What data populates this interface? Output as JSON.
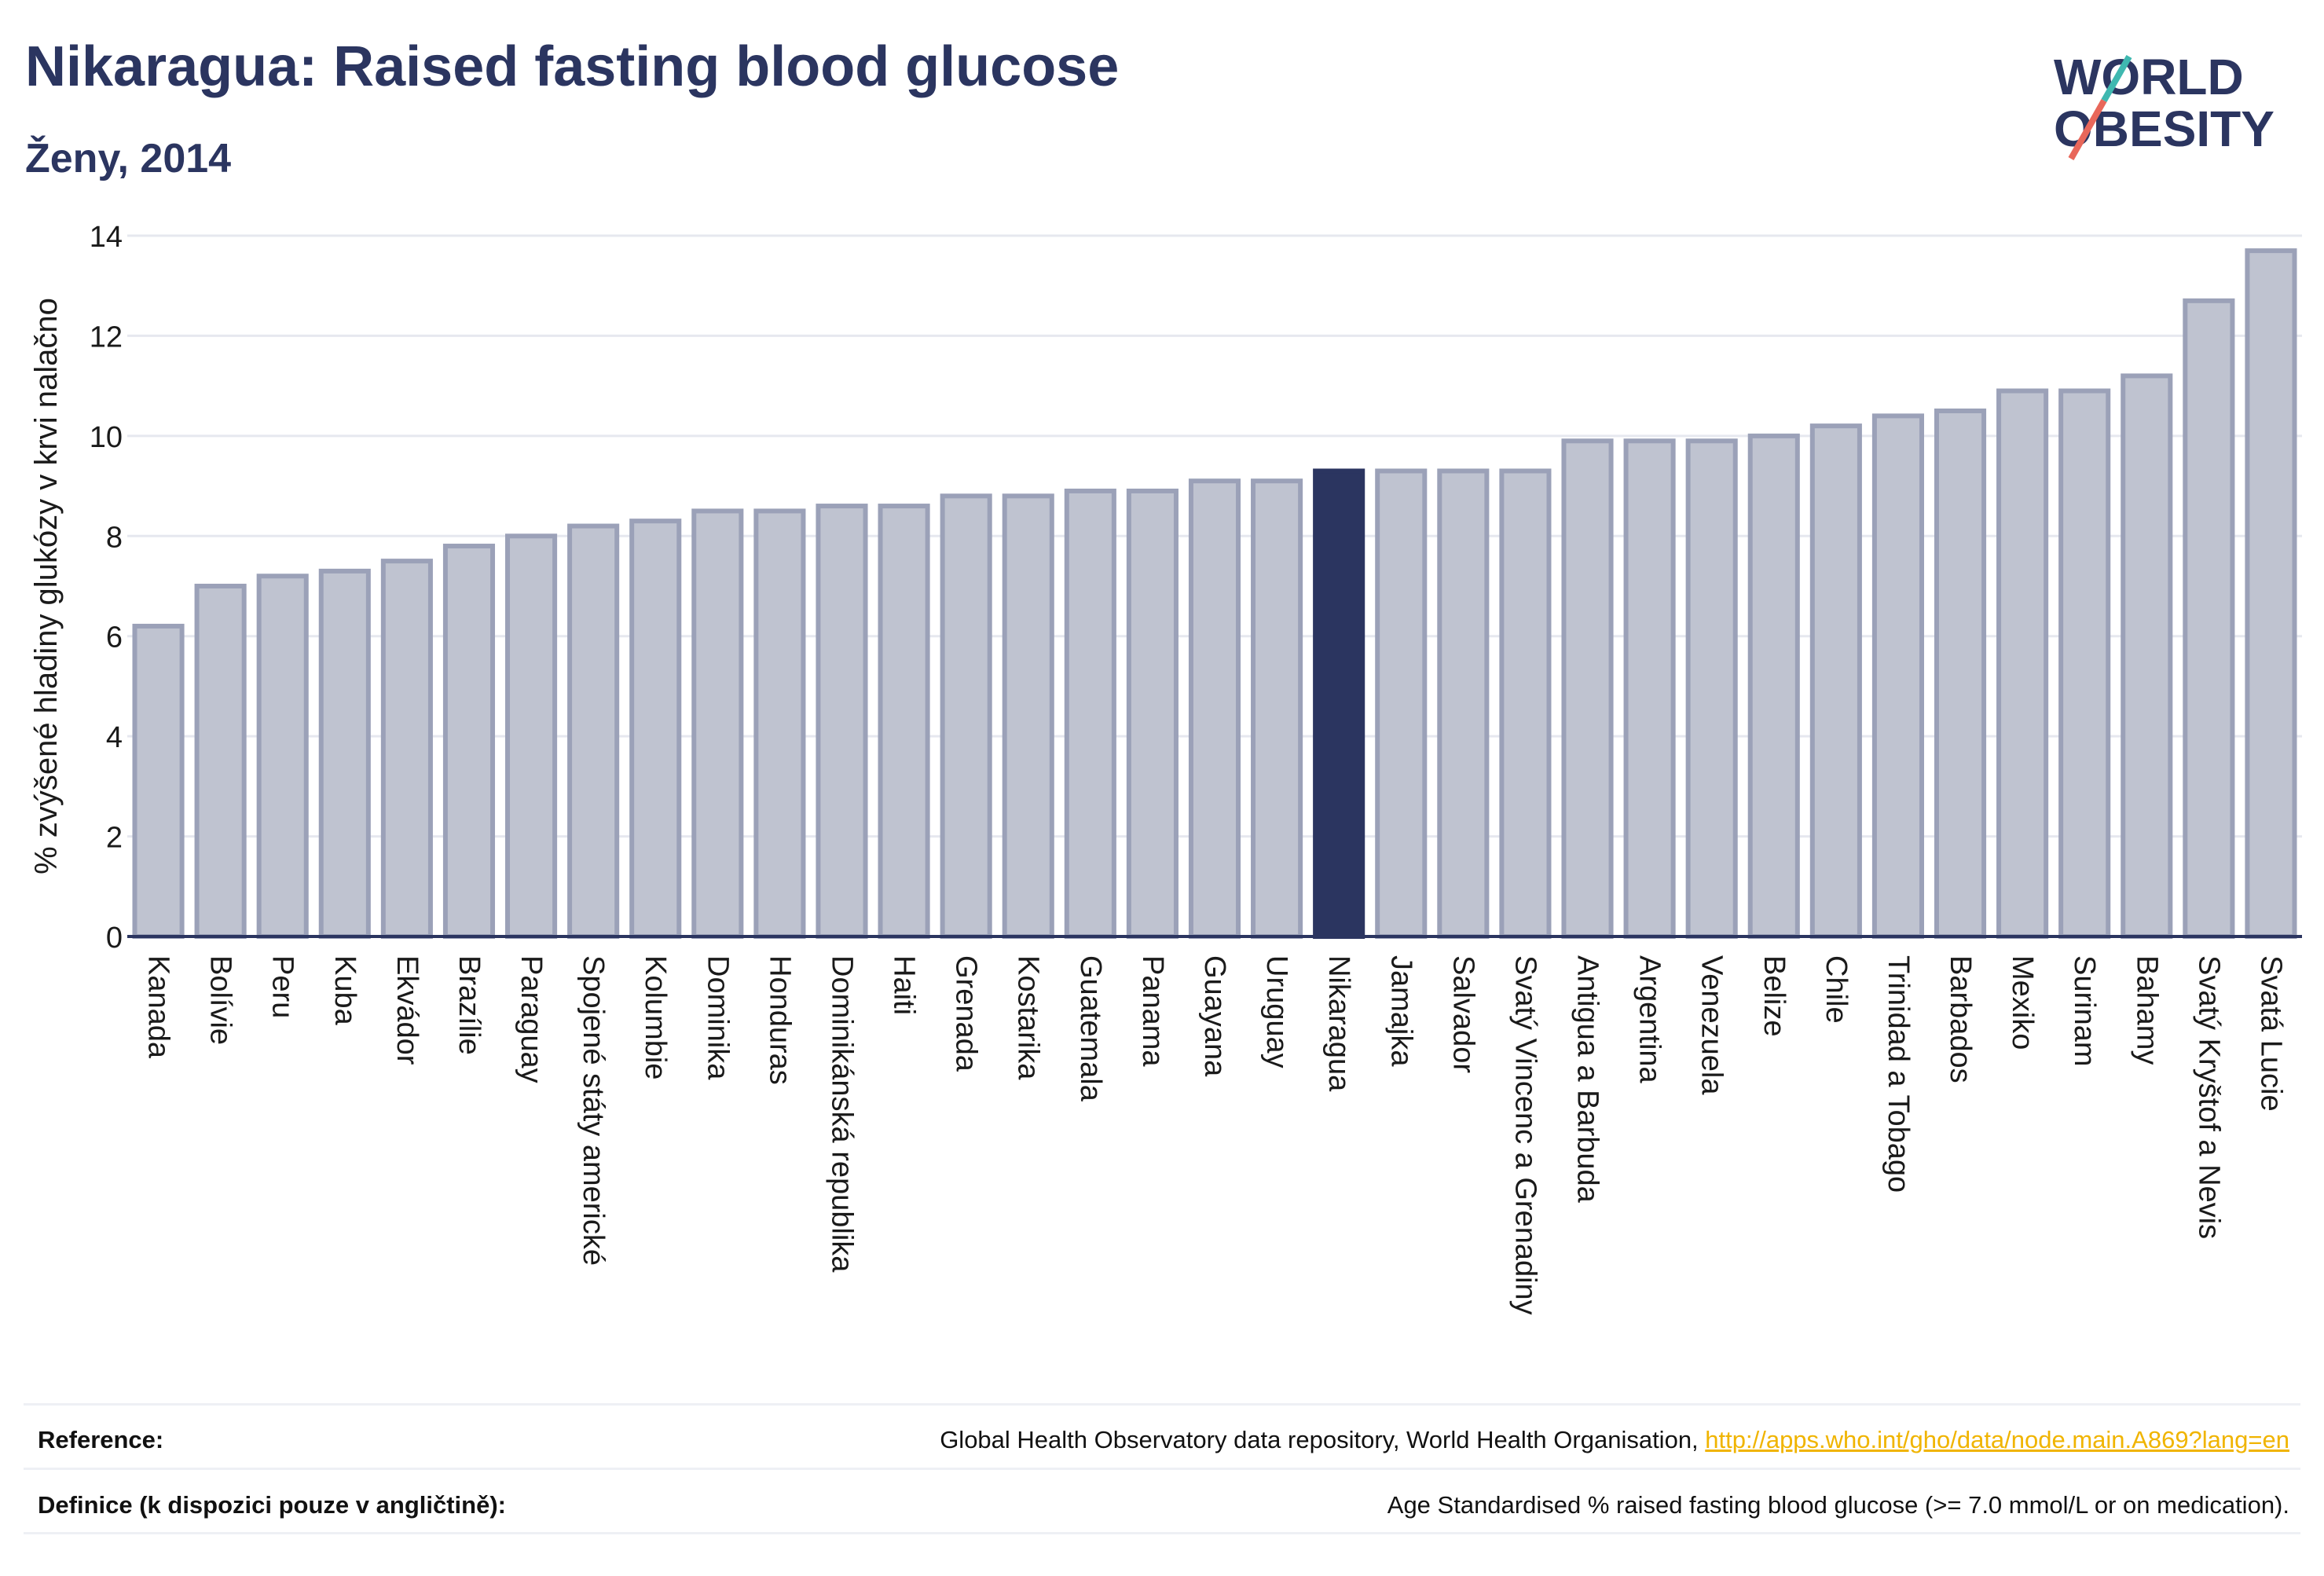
{
  "header": {
    "title": "Nikaragua: Raised fasting blood glucose",
    "subtitle": "Ženy, 2014"
  },
  "logo": {
    "line1": "WORLD",
    "line2": "OBESITY",
    "colors": {
      "text": "#2b3560",
      "slash_red": "#e8675a",
      "slash_teal": "#3fb8b0"
    }
  },
  "chart_data": {
    "type": "bar",
    "ylabel": "% zvýšené hladiny glukózy v krvi nalačno",
    "ylim": [
      0,
      14
    ],
    "yticks": [
      0,
      2,
      4,
      6,
      8,
      10,
      12,
      14
    ],
    "grid": true,
    "highlight": "Nikaragua",
    "colors": {
      "bar": "#bfc3d0",
      "bar_edge": "#9ba1b8",
      "highlight": "#2b3560"
    },
    "categories": [
      "Kanada",
      "Bolívie",
      "Peru",
      "Kuba",
      "Ekvádor",
      "Brazílie",
      "Paraguay",
      "Spojené státy americké",
      "Kolumbie",
      "Dominika",
      "Honduras",
      "Dominikánská republika",
      "Haiti",
      "Grenada",
      "Kostarika",
      "Guatemala",
      "Panama",
      "Guayana",
      "Uruguay",
      "Nikaragua",
      "Jamajka",
      "Salvador",
      "Svatý Vincenc a Grenadiny",
      "Antigua a Barbuda",
      "Argentina",
      "Venezuela",
      "Belize",
      "Chile",
      "Trinidad a Tobago",
      "Barbados",
      "Mexiko",
      "Surinam",
      "Bahamy",
      "Svatý Kryštof a Nevis",
      "Svatá Lucie"
    ],
    "values": [
      6.2,
      7.0,
      7.2,
      7.3,
      7.5,
      7.8,
      8.0,
      8.2,
      8.3,
      8.5,
      8.5,
      8.6,
      8.6,
      8.8,
      8.8,
      8.9,
      8.9,
      9.1,
      9.1,
      9.3,
      9.3,
      9.3,
      9.3,
      9.9,
      9.9,
      9.9,
      10.0,
      10.2,
      10.4,
      10.5,
      10.9,
      10.9,
      11.2,
      12.7,
      13.7
    ]
  },
  "footer": {
    "reference_label": "Reference:",
    "reference_text": "Global Health Observatory data repository, World Health Organisation, ",
    "reference_link": "http://apps.who.int/gho/data/node.main.A869?lang=en",
    "definition_label": "Definice (k dispozici pouze v angličtině):",
    "definition_text": "Age Standardised % raised fasting blood glucose (>= 7.0 mmol/L or on medication)."
  }
}
